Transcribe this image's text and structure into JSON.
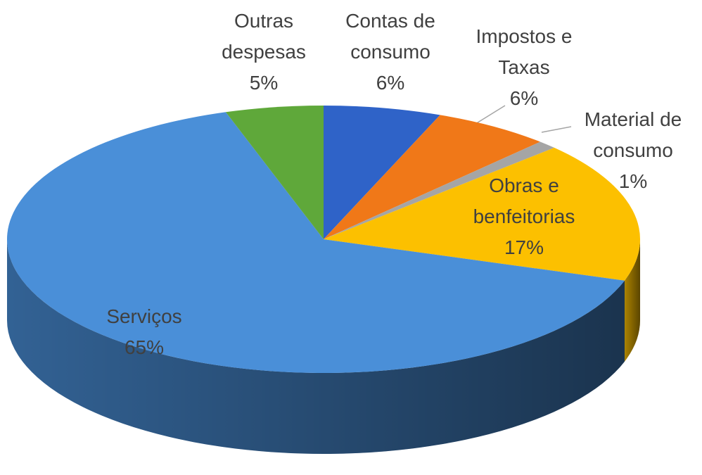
{
  "chart_data": {
    "type": "pie",
    "categories": [
      "Contas de consumo",
      "Impostos e Taxas",
      "Material de consumo",
      "Obras e benfeitorias",
      "Serviços",
      "Outras despesas"
    ],
    "values": [
      6,
      6,
      1,
      17,
      65,
      5
    ],
    "value_labels": [
      "6%",
      "6%",
      "1%",
      "17%",
      "65%",
      "5%"
    ],
    "colors": [
      "#2f63c8",
      "#f07818",
      "#a5a5a5",
      "#fcc000",
      "#4a8fd8",
      "#5fa83a"
    ]
  }
}
